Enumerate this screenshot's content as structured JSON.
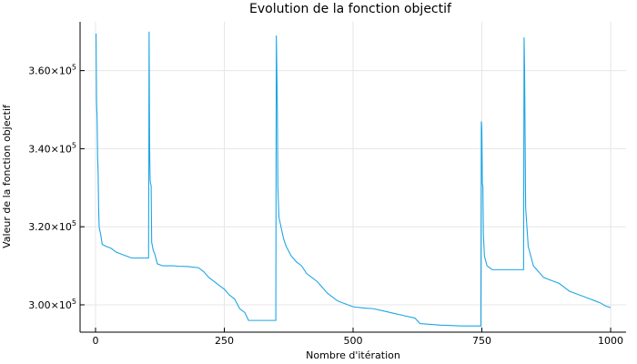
{
  "chart_data": {
    "type": "line",
    "title": "Evolution de la fonction objectif",
    "xlabel": "Nombre d'itération",
    "ylabel": "Valeur de la fonction objectif",
    "xlim": [
      -30,
      1030
    ],
    "ylim": [
      293000,
      372500
    ],
    "x_ticks": [
      {
        "value": 0,
        "label": "0"
      },
      {
        "value": 250,
        "label": "250"
      },
      {
        "value": 500,
        "label": "500"
      },
      {
        "value": 750,
        "label": "750"
      },
      {
        "value": 1000,
        "label": "1000"
      }
    ],
    "y_ticks": [
      {
        "value": 300000,
        "mantissa": "3.00×10",
        "exp": "5"
      },
      {
        "value": 320000,
        "mantissa": "3.20×10",
        "exp": "5"
      },
      {
        "value": 340000,
        "mantissa": "3.40×10",
        "exp": "5"
      },
      {
        "value": 360000,
        "mantissa": "3.60×10",
        "exp": "5"
      }
    ],
    "grid": true,
    "legend": "none",
    "series": [
      {
        "color": "#1ea6e6",
        "points": [
          [
            1,
            369500
          ],
          [
            2,
            352000
          ],
          [
            3,
            348000
          ],
          [
            4,
            338000
          ],
          [
            5,
            334000
          ],
          [
            6,
            325000
          ],
          [
            7,
            320000
          ],
          [
            10,
            318000
          ],
          [
            13,
            315500
          ],
          [
            20,
            315000
          ],
          [
            30,
            314500
          ],
          [
            40,
            313500
          ],
          [
            50,
            313000
          ],
          [
            60,
            312500
          ],
          [
            70,
            312000
          ],
          [
            80,
            312000
          ],
          [
            90,
            312000
          ],
          [
            103,
            312000
          ],
          [
            104,
            370000
          ],
          [
            105,
            340000
          ],
          [
            106,
            332000
          ],
          [
            107,
            331000
          ],
          [
            108,
            330500
          ],
          [
            109,
            316000
          ],
          [
            112,
            314000
          ],
          [
            115,
            313000
          ],
          [
            120,
            310500
          ],
          [
            130,
            310000
          ],
          [
            150,
            310000
          ],
          [
            160,
            309900
          ],
          [
            180,
            309800
          ],
          [
            200,
            309500
          ],
          [
            210,
            308500
          ],
          [
            220,
            307000
          ],
          [
            230,
            306000
          ],
          [
            240,
            305000
          ],
          [
            250,
            304000
          ],
          [
            260,
            302500
          ],
          [
            270,
            301500
          ],
          [
            280,
            299000
          ],
          [
            290,
            298000
          ],
          [
            297,
            296000
          ],
          [
            310,
            296000
          ],
          [
            330,
            296000
          ],
          [
            350,
            296000
          ],
          [
            351,
            369000
          ],
          [
            352,
            360000
          ],
          [
            353,
            350000
          ],
          [
            354,
            330000
          ],
          [
            356,
            322500
          ],
          [
            360,
            320000
          ],
          [
            365,
            317000
          ],
          [
            370,
            315000
          ],
          [
            380,
            312500
          ],
          [
            390,
            311000
          ],
          [
            400,
            310000
          ],
          [
            410,
            308000
          ],
          [
            420,
            307000
          ],
          [
            430,
            306000
          ],
          [
            440,
            304500
          ],
          [
            450,
            303000
          ],
          [
            460,
            302000
          ],
          [
            470,
            301000
          ],
          [
            480,
            300500
          ],
          [
            490,
            300000
          ],
          [
            500,
            299500
          ],
          [
            520,
            299200
          ],
          [
            540,
            299000
          ],
          [
            560,
            298400
          ],
          [
            580,
            297800
          ],
          [
            600,
            297200
          ],
          [
            620,
            296600
          ],
          [
            630,
            295200
          ],
          [
            650,
            295000
          ],
          [
            670,
            294800
          ],
          [
            690,
            294700
          ],
          [
            710,
            294600
          ],
          [
            730,
            294600
          ],
          [
            748,
            294600
          ],
          [
            749,
            347000
          ],
          [
            750,
            345000
          ],
          [
            751,
            331000
          ],
          [
            752,
            330500
          ],
          [
            753,
            318000
          ],
          [
            755,
            312500
          ],
          [
            760,
            310000
          ],
          [
            765,
            309500
          ],
          [
            770,
            309000
          ],
          [
            790,
            309000
          ],
          [
            810,
            309000
          ],
          [
            831,
            309000
          ],
          [
            832,
            368500
          ],
          [
            833,
            360000
          ],
          [
            835,
            325000
          ],
          [
            840,
            315000
          ],
          [
            850,
            310000
          ],
          [
            860,
            308500
          ],
          [
            870,
            307000
          ],
          [
            880,
            306500
          ],
          [
            890,
            306000
          ],
          [
            900,
            305500
          ],
          [
            910,
            304500
          ],
          [
            920,
            303500
          ],
          [
            930,
            303000
          ],
          [
            940,
            302500
          ],
          [
            950,
            302000
          ],
          [
            960,
            301500
          ],
          [
            970,
            301000
          ],
          [
            980,
            300500
          ],
          [
            990,
            299700
          ],
          [
            1000,
            299300
          ]
        ]
      }
    ]
  }
}
